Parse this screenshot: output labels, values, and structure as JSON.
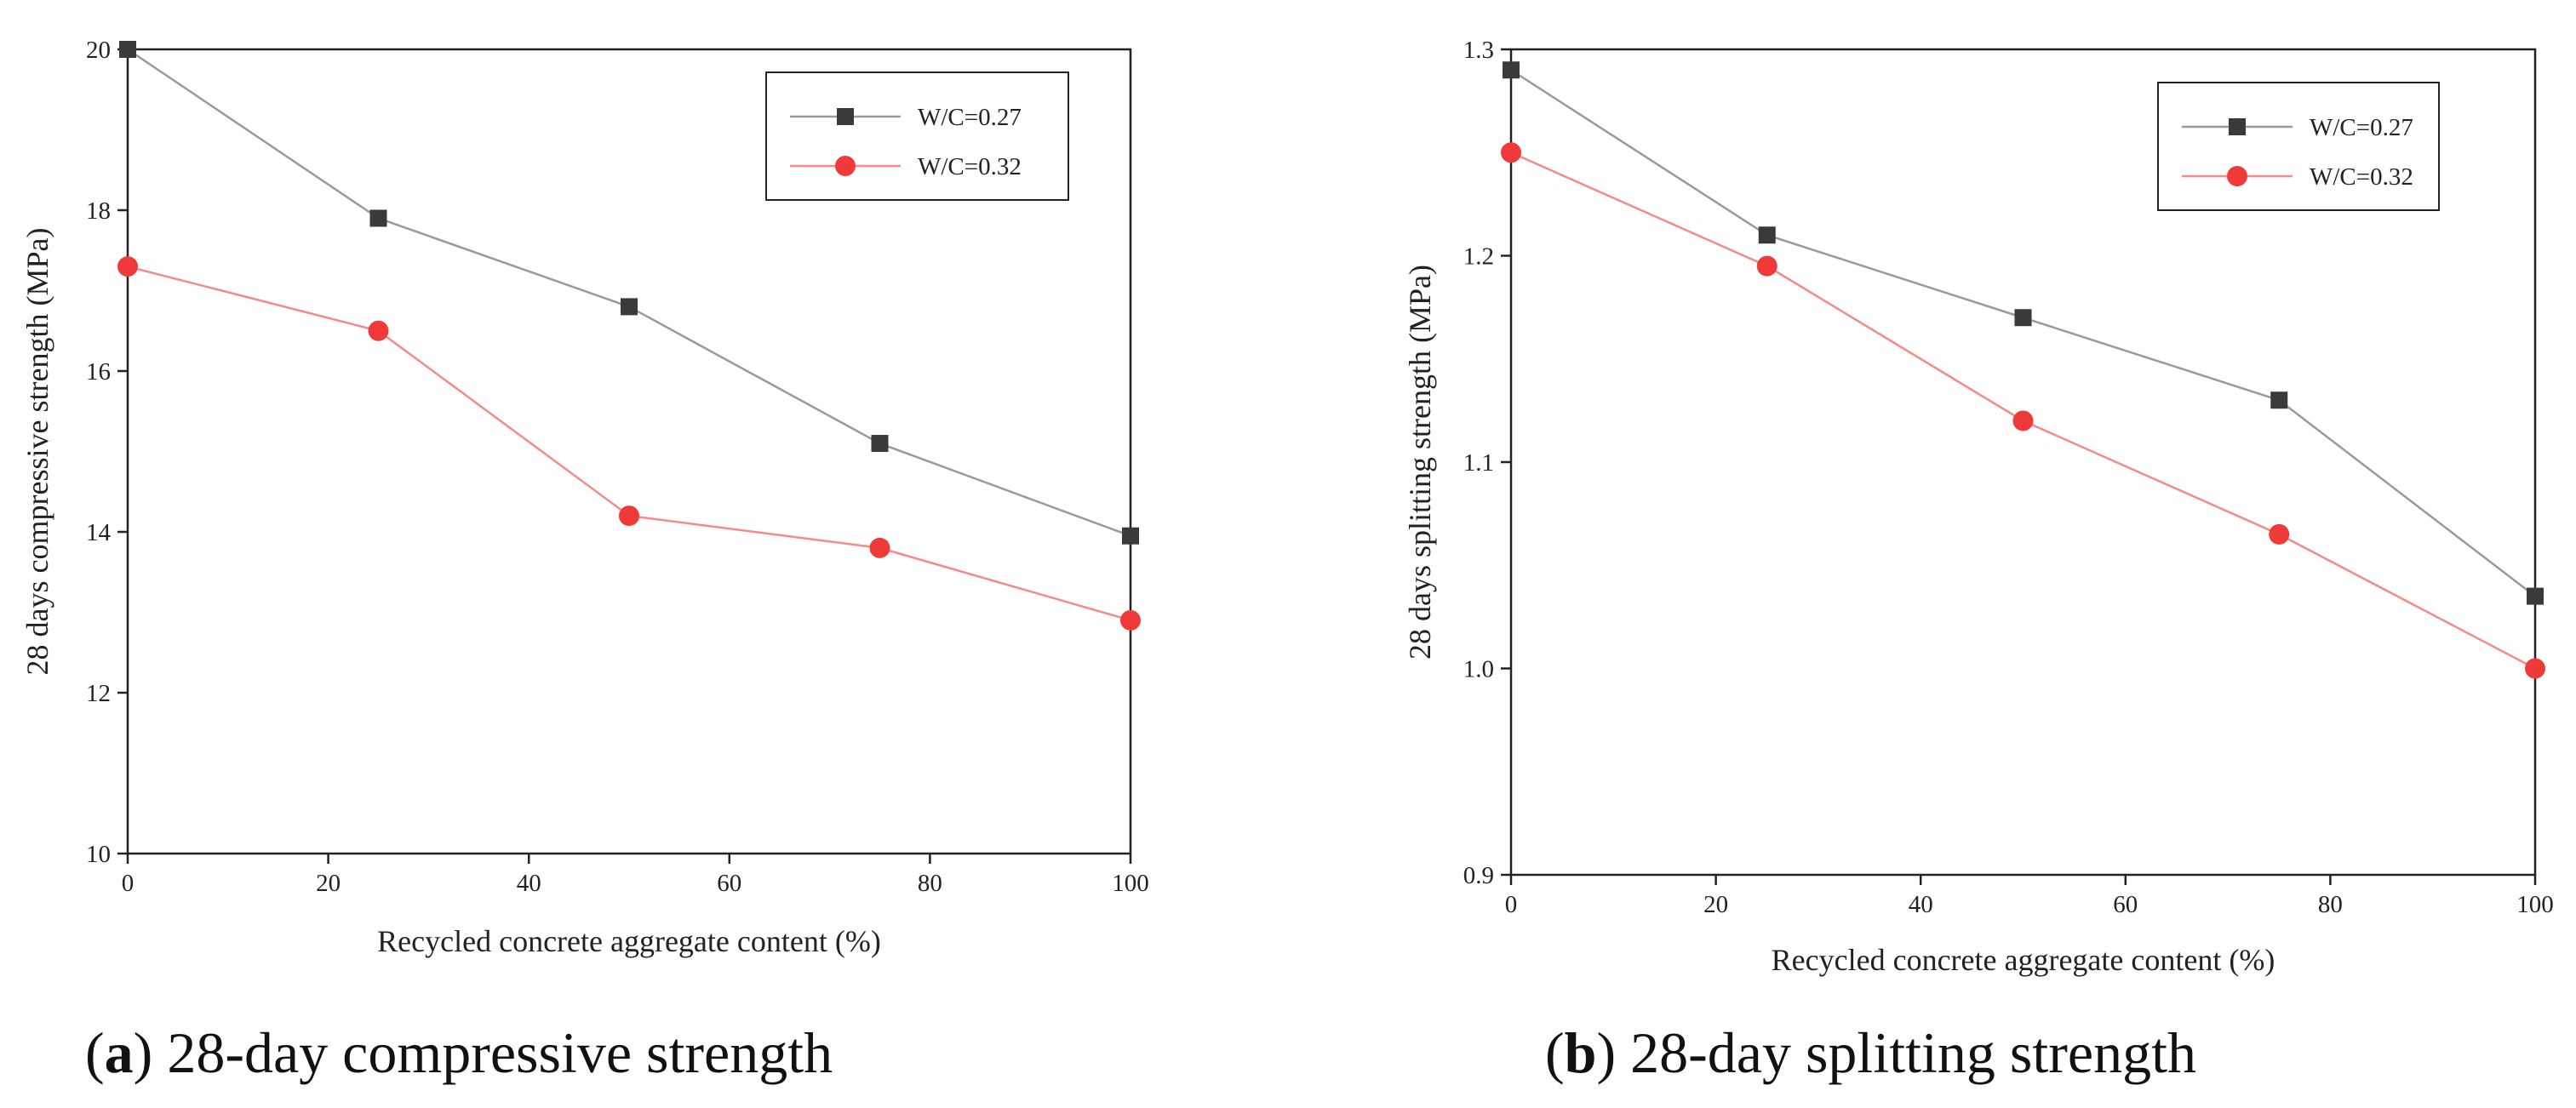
{
  "chart_data": [
    {
      "type": "line",
      "id": "a",
      "caption_letter": "a",
      "caption_text": "28-day compressive strength",
      "xlabel": "Recycled concrete aggregate content (%)",
      "ylabel": "28 days compressive strength (MPa)",
      "xlim": [
        0,
        100
      ],
      "ylim": [
        10,
        20
      ],
      "xticks": [
        0,
        20,
        40,
        60,
        80,
        100
      ],
      "yticks": [
        10,
        12,
        14,
        16,
        18,
        20
      ],
      "ytick_decimals": 0,
      "legend_position": "top-right",
      "x": [
        0,
        25,
        50,
        75,
        100
      ],
      "series": [
        {
          "name": "W/C=0.27",
          "marker": "square",
          "color": "#3a3a3a",
          "line_color": "#9a9a9a",
          "values": [
            20.0,
            17.9,
            16.8,
            15.1,
            13.95
          ]
        },
        {
          "name": "W/C=0.32",
          "marker": "circle",
          "color": "#f03a3a",
          "line_color": "#f48a8a",
          "values": [
            17.3,
            16.5,
            14.2,
            13.8,
            12.9
          ]
        }
      ]
    },
    {
      "type": "line",
      "id": "b",
      "caption_letter": "b",
      "caption_text": "28-day splitting strength",
      "xlabel": "Recycled concrete aggregate content (%)",
      "ylabel": "28 days splitting strength (MPa)",
      "xlim": [
        0,
        100
      ],
      "ylim": [
        0.9,
        1.3
      ],
      "xticks": [
        0,
        20,
        40,
        60,
        80,
        100
      ],
      "yticks": [
        0.9,
        1.0,
        1.1,
        1.2,
        1.3
      ],
      "ytick_decimals": 1,
      "legend_position": "top-right",
      "x": [
        0,
        25,
        50,
        75,
        100
      ],
      "series": [
        {
          "name": "W/C=0.27",
          "marker": "square",
          "color": "#3a3a3a",
          "line_color": "#9a9a9a",
          "values": [
            1.29,
            1.21,
            1.17,
            1.13,
            1.035
          ]
        },
        {
          "name": "W/C=0.32",
          "marker": "circle",
          "color": "#f03a3a",
          "line_color": "#f48a8a",
          "values": [
            1.25,
            1.195,
            1.12,
            1.065,
            1.0
          ]
        }
      ]
    }
  ]
}
